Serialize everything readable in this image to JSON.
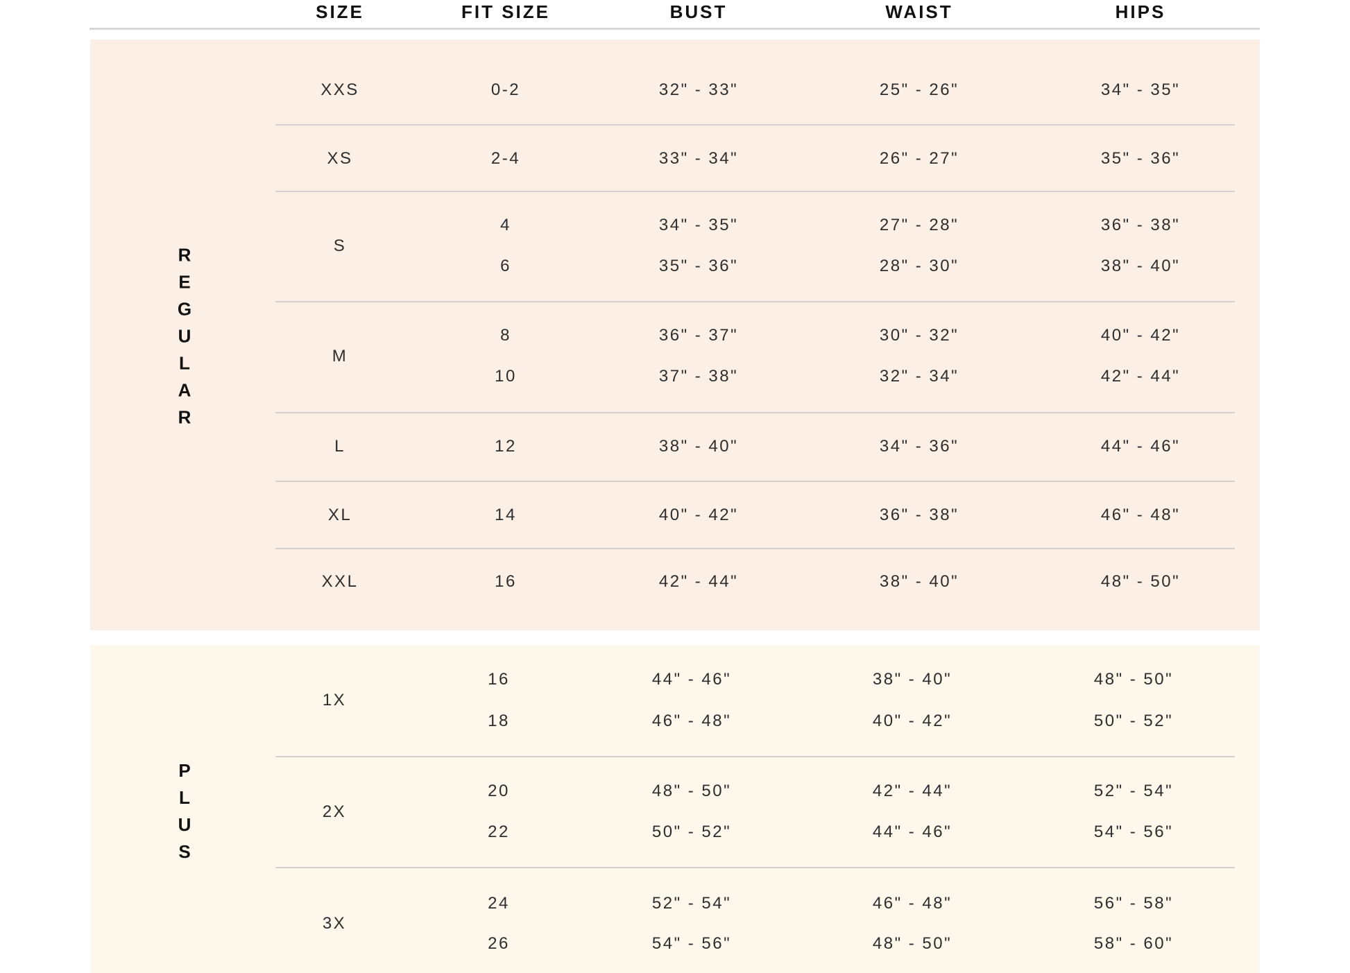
{
  "headers": {
    "size": "SIZE",
    "fit_size": "FIT SIZE",
    "bust": "BUST",
    "waist": "WAIST",
    "hips": "HIPS"
  },
  "colors": {
    "regular_bg": "#fcefe5",
    "plus_bg": "#fdf7ec",
    "divider": "#d3d0cd"
  },
  "groups": [
    {
      "label": "REGULAR",
      "rows": [
        {
          "size": "XXS",
          "lines": [
            {
              "fit": "0-2",
              "bust": "32\" - 33\"",
              "waist": "25\" - 26\"",
              "hips": "34\" - 35\""
            }
          ]
        },
        {
          "size": "XS",
          "lines": [
            {
              "fit": "2-4",
              "bust": "33\" - 34\"",
              "waist": "26\" - 27\"",
              "hips": "35\" - 36\""
            }
          ]
        },
        {
          "size": "S",
          "lines": [
            {
              "fit": "4",
              "bust": "34\" - 35\"",
              "waist": "27\" - 28\"",
              "hips": "36\" - 38\""
            },
            {
              "fit": "6",
              "bust": "35\" - 36\"",
              "waist": "28\" - 30\"",
              "hips": "38\" - 40\""
            }
          ]
        },
        {
          "size": "M",
          "lines": [
            {
              "fit": "8",
              "bust": "36\" - 37\"",
              "waist": "30\" - 32\"",
              "hips": "40\" - 42\""
            },
            {
              "fit": "10",
              "bust": "37\" - 38\"",
              "waist": "32\" - 34\"",
              "hips": "42\" - 44\""
            }
          ]
        },
        {
          "size": "L",
          "lines": [
            {
              "fit": "12",
              "bust": "38\" - 40\"",
              "waist": "34\" - 36\"",
              "hips": "44\" - 46\""
            }
          ]
        },
        {
          "size": "XL",
          "lines": [
            {
              "fit": "14",
              "bust": "40\" - 42\"",
              "waist": "36\" - 38\"",
              "hips": "46\" - 48\""
            }
          ]
        },
        {
          "size": "XXL",
          "lines": [
            {
              "fit": "16",
              "bust": "42\" - 44\"",
              "waist": "38\" - 40\"",
              "hips": "48\" - 50\""
            }
          ]
        }
      ]
    },
    {
      "label": "PLUS",
      "rows": [
        {
          "size": "1X",
          "lines": [
            {
              "fit": "16",
              "bust": "44\" - 46\"",
              "waist": "38\" - 40\"",
              "hips": "48\" - 50\""
            },
            {
              "fit": "18",
              "bust": "46\" - 48\"",
              "waist": "40\" - 42\"",
              "hips": "50\" - 52\""
            }
          ]
        },
        {
          "size": "2X",
          "lines": [
            {
              "fit": "20",
              "bust": "48\" - 50\"",
              "waist": "42\" - 44\"",
              "hips": "52\" - 54\""
            },
            {
              "fit": "22",
              "bust": "50\" - 52\"",
              "waist": "44\" - 46\"",
              "hips": "54\" - 56\""
            }
          ]
        },
        {
          "size": "3X",
          "lines": [
            {
              "fit": "24",
              "bust": "52\" - 54\"",
              "waist": "46\" - 48\"",
              "hips": "56\" - 58\""
            },
            {
              "fit": "26",
              "bust": "54\" - 56\"",
              "waist": "48\" - 50\"",
              "hips": "58\" - 60\""
            }
          ]
        }
      ]
    }
  ]
}
